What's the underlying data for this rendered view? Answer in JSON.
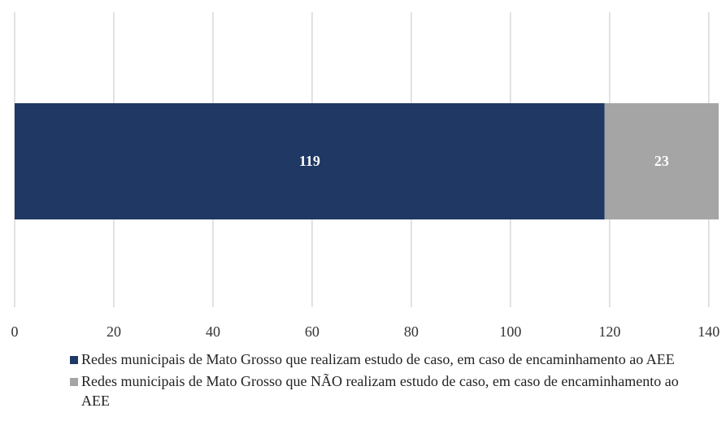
{
  "chart_data": {
    "type": "stacked_bar_horizontal",
    "series": [
      {
        "name": "Redes municipais de Mato Grosso que realizam estudo de caso, em caso de encaminhamento ao AEE",
        "color": "#1f3864",
        "values": [
          119
        ]
      },
      {
        "name": "Redes municipais de Mato Grosso que NÃO realizam estudo de caso, em caso de encaminhamento ao AEE",
        "color": "#a5a5a5",
        "values": [
          23
        ]
      }
    ],
    "xlim": [
      0,
      142
    ],
    "xticks": [
      0,
      20,
      40,
      60,
      80,
      100,
      120,
      140
    ],
    "grid": true
  }
}
